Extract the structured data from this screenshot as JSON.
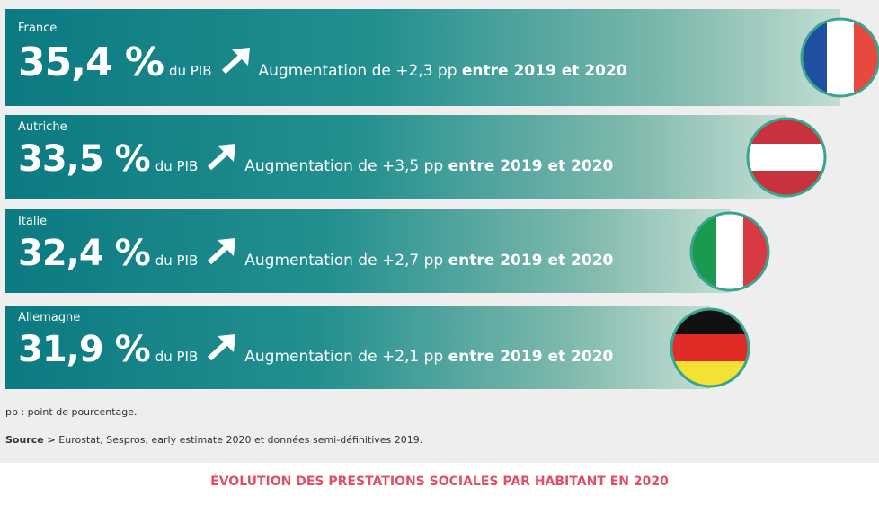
{
  "rows": [
    {
      "country": "France",
      "value": "35,4 %",
      "unit": "du PIB",
      "change": "Augmentation de +2,3 pp",
      "period": "entre 2019 et 2020"
    },
    {
      "country": "Autriche",
      "value": "33,5 %",
      "unit": "du PIB",
      "change": "Augmentation de +3,5 pp",
      "period": "entre 2019 et 2020"
    },
    {
      "country": "Italie",
      "value": "32,4 %",
      "unit": "du PIB",
      "change": "Augmentation de +2,7 pp",
      "period": "entre 2019 et 2020"
    },
    {
      "country": "Allemagne",
      "value": "31,9 %",
      "unit": "du PIB",
      "change": "Augmentation de +2,1 pp",
      "period": "entre 2019 et 2020"
    }
  ],
  "note": "pp : point de pourcentage.",
  "source": {
    "label": "Source >",
    "text": "Eurostat, Sespros, early estimate 2020 et données semi-définitives 2019."
  },
  "next_title": "ÉVOLUTION DES PRESTATIONS SOCIALES PAR HABITANT EN 2020"
}
